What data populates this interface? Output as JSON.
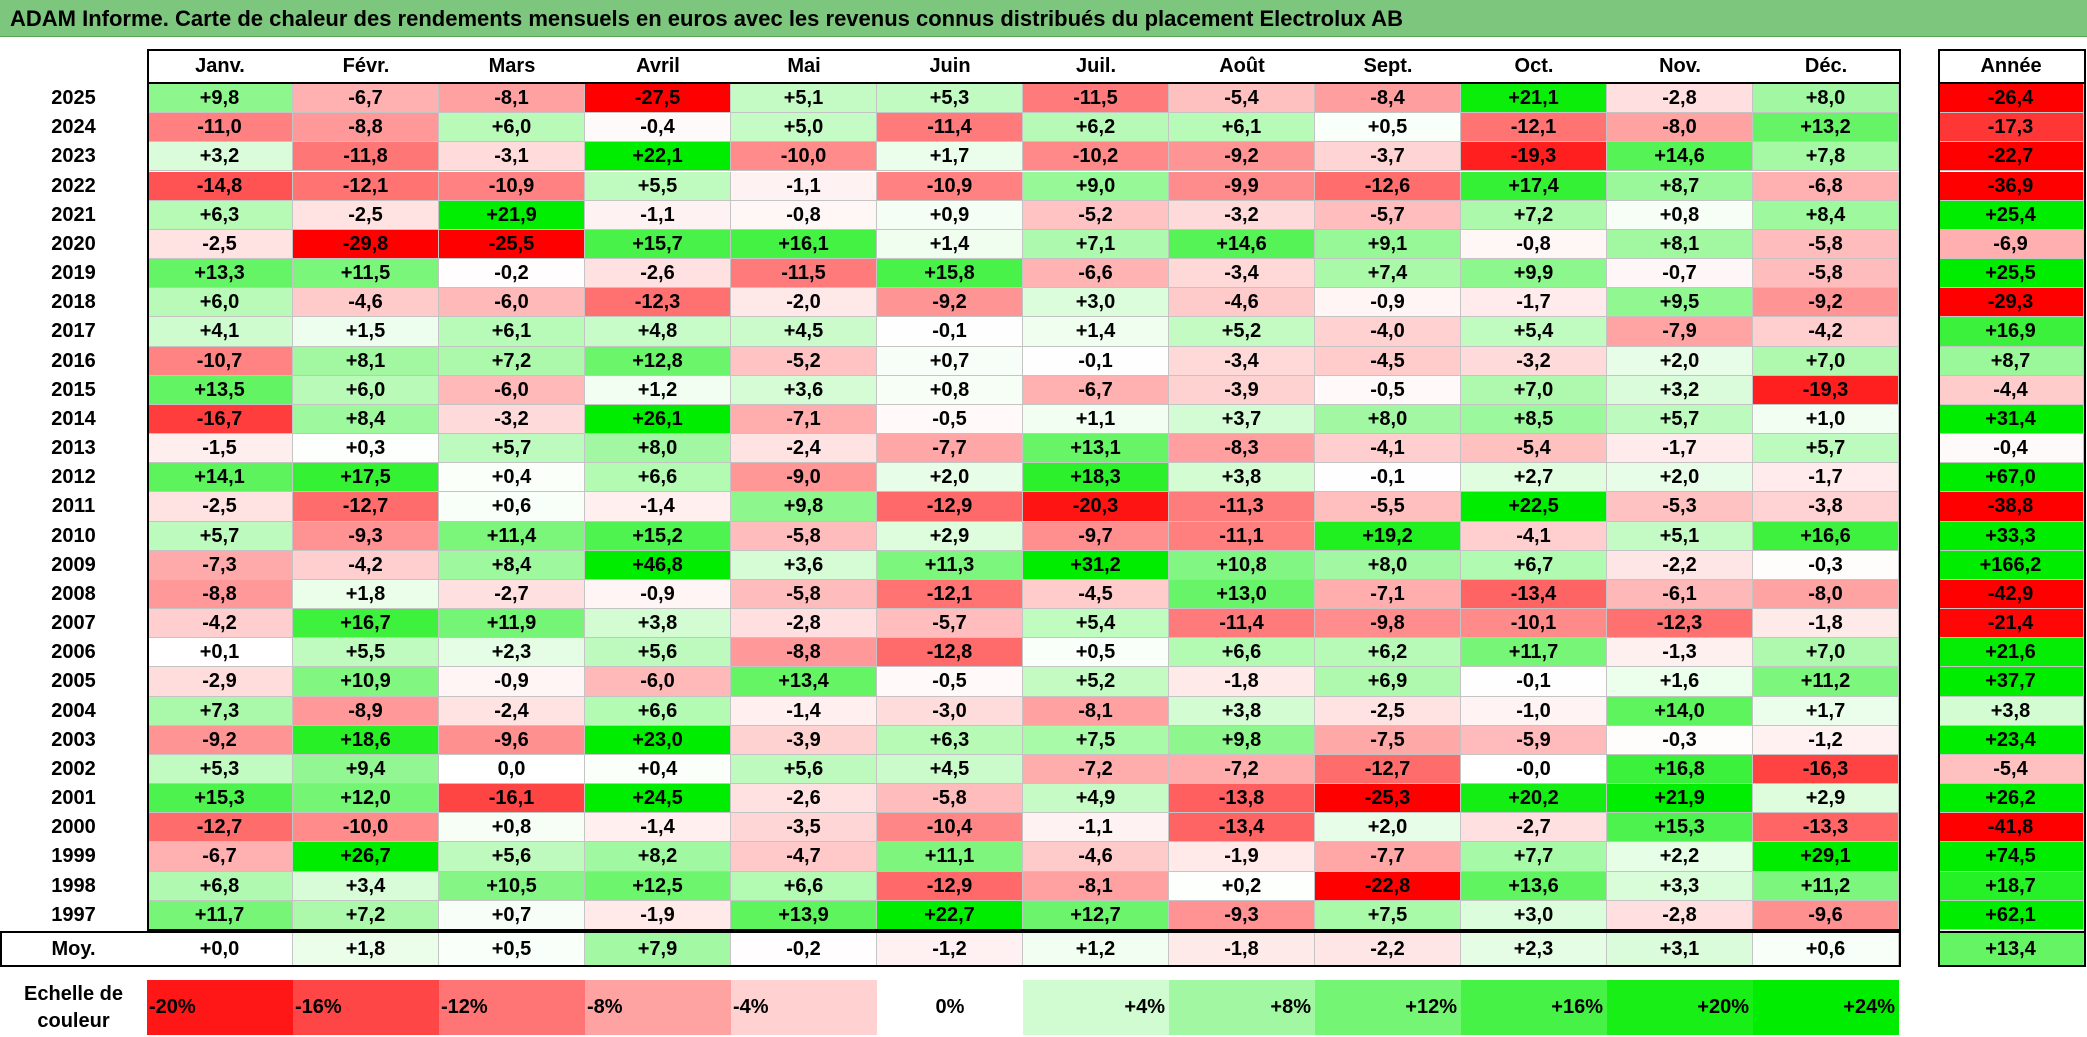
{
  "title": "ADAM Informe. Carte de chaleur des rendements mensuels en euros avec les revenus connus distribués du placement Electrolux AB",
  "colors": {
    "title_bar": "#7dc67d",
    "negative_max": "#ff0000",
    "positive_max": "#00ee00",
    "neutral": "#ffffff"
  },
  "chart_data": {
    "type": "heatmap",
    "months": [
      "Janv.",
      "Févr.",
      "Mars",
      "Avril",
      "Mai",
      "Juin",
      "Juil.",
      "Août",
      "Sept.",
      "Oct.",
      "Nov.",
      "Déc."
    ],
    "year_header": "Année",
    "rows": [
      {
        "year": "2025",
        "months": [
          "+9,8",
          "-6,7",
          "-8,1",
          "-27,5",
          "+5,1",
          "+5,3",
          "-11,5",
          "-5,4",
          "-8,4",
          "+21,1",
          "-2,8",
          "+8,0"
        ],
        "annual": "-26,4"
      },
      {
        "year": "2024",
        "months": [
          "-11,0",
          "-8,8",
          "+6,0",
          "-0,4",
          "+5,0",
          "-11,4",
          "+6,2",
          "+6,1",
          "+0,5",
          "-12,1",
          "-8,0",
          "+13,2"
        ],
        "annual": "-17,3"
      },
      {
        "year": "2023",
        "months": [
          "+3,2",
          "-11,8",
          "-3,1",
          "+22,1",
          "-10,0",
          "+1,7",
          "-10,2",
          "-9,2",
          "-3,7",
          "-19,3",
          "+14,6",
          "+7,8"
        ],
        "annual": "-22,7"
      },
      {
        "year": "2022",
        "months": [
          "-14,8",
          "-12,1",
          "-10,9",
          "+5,5",
          "-1,1",
          "-10,9",
          "+9,0",
          "-9,9",
          "-12,6",
          "+17,4",
          "+8,7",
          "-6,8"
        ],
        "annual": "-36,9"
      },
      {
        "year": "2021",
        "months": [
          "+6,3",
          "-2,5",
          "+21,9",
          "-1,1",
          "-0,8",
          "+0,9",
          "-5,2",
          "-3,2",
          "-5,7",
          "+7,2",
          "+0,8",
          "+8,4"
        ],
        "annual": "+25,4"
      },
      {
        "year": "2020",
        "months": [
          "-2,5",
          "-29,8",
          "-25,5",
          "+15,7",
          "+16,1",
          "+1,4",
          "+7,1",
          "+14,6",
          "+9,1",
          "-0,8",
          "+8,1",
          "-5,8"
        ],
        "annual": "-6,9"
      },
      {
        "year": "2019",
        "months": [
          "+13,3",
          "+11,5",
          "-0,2",
          "-2,6",
          "-11,5",
          "+15,8",
          "-6,6",
          "-3,4",
          "+7,4",
          "+9,9",
          "-0,7",
          "-5,8"
        ],
        "annual": "+25,5"
      },
      {
        "year": "2018",
        "months": [
          "+6,0",
          "-4,6",
          "-6,0",
          "-12,3",
          "-2,0",
          "-9,2",
          "+3,0",
          "-4,6",
          "-0,9",
          "-1,7",
          "+9,5",
          "-9,2"
        ],
        "annual": "-29,3"
      },
      {
        "year": "2017",
        "months": [
          "+4,1",
          "+1,5",
          "+6,1",
          "+4,8",
          "+4,5",
          "-0,1",
          "+1,4",
          "+5,2",
          "-4,0",
          "+5,4",
          "-7,9",
          "-4,2"
        ],
        "annual": "+16,9"
      },
      {
        "year": "2016",
        "months": [
          "-10,7",
          "+8,1",
          "+7,2",
          "+12,8",
          "-5,2",
          "+0,7",
          "-0,1",
          "-3,4",
          "-4,5",
          "-3,2",
          "+2,0",
          "+7,0"
        ],
        "annual": "+8,7"
      },
      {
        "year": "2015",
        "months": [
          "+13,5",
          "+6,0",
          "-6,0",
          "+1,2",
          "+3,6",
          "+0,8",
          "-6,7",
          "-3,9",
          "-0,5",
          "+7,0",
          "+3,2",
          "-19,3"
        ],
        "annual": "-4,4"
      },
      {
        "year": "2014",
        "months": [
          "-16,7",
          "+8,4",
          "-3,2",
          "+26,1",
          "-7,1",
          "-0,5",
          "+1,1",
          "+3,7",
          "+8,0",
          "+8,5",
          "+5,7",
          "+1,0"
        ],
        "annual": "+31,4"
      },
      {
        "year": "2013",
        "months": [
          "-1,5",
          "+0,3",
          "+5,7",
          "+8,0",
          "-2,4",
          "-7,7",
          "+13,1",
          "-8,3",
          "-4,1",
          "-5,4",
          "-1,7",
          "+5,7"
        ],
        "annual": "-0,4"
      },
      {
        "year": "2012",
        "months": [
          "+14,1",
          "+17,5",
          "+0,4",
          "+6,6",
          "-9,0",
          "+2,0",
          "+18,3",
          "+3,8",
          "-0,1",
          "+2,7",
          "+2,0",
          "-1,7"
        ],
        "annual": "+67,0"
      },
      {
        "year": "2011",
        "months": [
          "-2,5",
          "-12,7",
          "+0,6",
          "-1,4",
          "+9,8",
          "-12,9",
          "-20,3",
          "-11,3",
          "-5,5",
          "+22,5",
          "-5,3",
          "-3,8"
        ],
        "annual": "-38,8"
      },
      {
        "year": "2010",
        "months": [
          "+5,7",
          "-9,3",
          "+11,4",
          "+15,2",
          "-5,8",
          "+2,9",
          "-9,7",
          "-11,1",
          "+19,2",
          "-4,1",
          "+5,1",
          "+16,6"
        ],
        "annual": "+33,3"
      },
      {
        "year": "2009",
        "months": [
          "-7,3",
          "-4,2",
          "+8,4",
          "+46,8",
          "+3,6",
          "+11,3",
          "+31,2",
          "+10,8",
          "+8,0",
          "+6,7",
          "-2,2",
          "-0,3"
        ],
        "annual": "+166,2"
      },
      {
        "year": "2008",
        "months": [
          "-8,8",
          "+1,8",
          "-2,7",
          "-0,9",
          "-5,8",
          "-12,1",
          "-4,5",
          "+13,0",
          "-7,1",
          "-13,4",
          "-6,1",
          "-8,0"
        ],
        "annual": "-42,9"
      },
      {
        "year": "2007",
        "months": [
          "-4,2",
          "+16,7",
          "+11,9",
          "+3,8",
          "-2,8",
          "-5,7",
          "+5,4",
          "-11,4",
          "-9,8",
          "-10,1",
          "-12,3",
          "-1,8"
        ],
        "annual": "-21,4"
      },
      {
        "year": "2006",
        "months": [
          "+0,1",
          "+5,5",
          "+2,3",
          "+5,6",
          "-8,8",
          "-12,8",
          "+0,5",
          "+6,6",
          "+6,2",
          "+11,7",
          "-1,3",
          "+7,0"
        ],
        "annual": "+21,6"
      },
      {
        "year": "2005",
        "months": [
          "-2,9",
          "+10,9",
          "-0,9",
          "-6,0",
          "+13,4",
          "-0,5",
          "+5,2",
          "-1,8",
          "+6,9",
          "-0,1",
          "+1,6",
          "+11,2"
        ],
        "annual": "+37,7"
      },
      {
        "year": "2004",
        "months": [
          "+7,3",
          "-8,9",
          "-2,4",
          "+6,6",
          "-1,4",
          "-3,0",
          "-8,1",
          "+3,8",
          "-2,5",
          "-1,0",
          "+14,0",
          "+1,7"
        ],
        "annual": "+3,8"
      },
      {
        "year": "2003",
        "months": [
          "-9,2",
          "+18,6",
          "-9,6",
          "+23,0",
          "-3,9",
          "+6,3",
          "+7,5",
          "+9,8",
          "-7,5",
          "-5,9",
          "-0,3",
          "-1,2"
        ],
        "annual": "+23,4"
      },
      {
        "year": "2002",
        "months": [
          "+5,3",
          "+9,4",
          "0,0",
          "+0,4",
          "+5,6",
          "+4,5",
          "-7,2",
          "-7,2",
          "-12,7",
          "-0,0",
          "+16,8",
          "-16,3"
        ],
        "annual": "-5,4"
      },
      {
        "year": "2001",
        "months": [
          "+15,3",
          "+12,0",
          "-16,1",
          "+24,5",
          "-2,6",
          "-5,8",
          "+4,9",
          "-13,8",
          "-25,3",
          "+20,2",
          "+21,9",
          "+2,9"
        ],
        "annual": "+26,2"
      },
      {
        "year": "2000",
        "months": [
          "-12,7",
          "-10,0",
          "+0,8",
          "-1,4",
          "-3,5",
          "-10,4",
          "-1,1",
          "-13,4",
          "+2,0",
          "-2,7",
          "+15,3",
          "-13,3"
        ],
        "annual": "-41,8"
      },
      {
        "year": "1999",
        "months": [
          "-6,7",
          "+26,7",
          "+5,6",
          "+8,2",
          "-4,7",
          "+11,1",
          "-4,6",
          "-1,9",
          "-7,7",
          "+7,7",
          "+2,2",
          "+29,1"
        ],
        "annual": "+74,5"
      },
      {
        "year": "1998",
        "months": [
          "+6,8",
          "+3,4",
          "+10,5",
          "+12,5",
          "+6,6",
          "-12,9",
          "-8,1",
          "+0,2",
          "-22,8",
          "+13,6",
          "+3,3",
          "+11,2"
        ],
        "annual": "+18,7"
      },
      {
        "year": "1997",
        "months": [
          "+11,7",
          "+7,2",
          "+0,7",
          "-1,9",
          "+13,9",
          "+22,7",
          "+12,7",
          "-9,3",
          "+7,5",
          "+3,0",
          "-2,8",
          "-9,6"
        ],
        "annual": "+62,1"
      }
    ],
    "average": {
      "label": "Moy.",
      "months": [
        "+0,0",
        "+1,8",
        "+0,5",
        "+7,9",
        "-0,2",
        "-1,2",
        "+1,2",
        "-1,8",
        "-2,2",
        "+2,3",
        "+3,1",
        "+0,6"
      ],
      "annual": "+13,4"
    },
    "legend": {
      "label": "Echelle de couleur",
      "steps": [
        {
          "text": "-20%",
          "value": -20
        },
        {
          "text": "-16%",
          "value": -16
        },
        {
          "text": "-12%",
          "value": -12
        },
        {
          "text": "-8%",
          "value": -8
        },
        {
          "text": "-4%",
          "value": -4
        },
        {
          "text": "0%",
          "value": 0
        },
        {
          "text": "+4%",
          "value": 4
        },
        {
          "text": "+8%",
          "value": 8
        },
        {
          "text": "+12%",
          "value": 12
        },
        {
          "text": "+16%",
          "value": 16
        },
        {
          "text": "+20%",
          "value": 20
        },
        {
          "text": "+24%",
          "value": 24
        }
      ]
    }
  }
}
